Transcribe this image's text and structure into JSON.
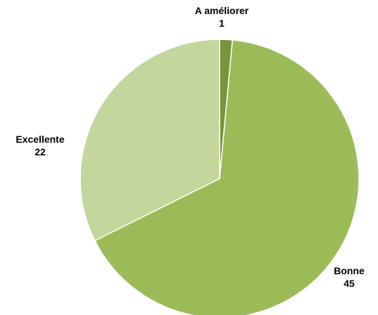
{
  "chart_data": {
    "type": "pie",
    "title": "",
    "slices": [
      {
        "label": "A améliorer",
        "value": 1,
        "color": "#77933C"
      },
      {
        "label": "Bonne",
        "value": 45,
        "color": "#9BBB59"
      },
      {
        "label": "Excellente",
        "value": 22,
        "color": "#C3D69B"
      }
    ],
    "start_angle_deg": 0,
    "direction": "clockwise",
    "legend": "none",
    "data_labels": "category-and-value outside"
  }
}
